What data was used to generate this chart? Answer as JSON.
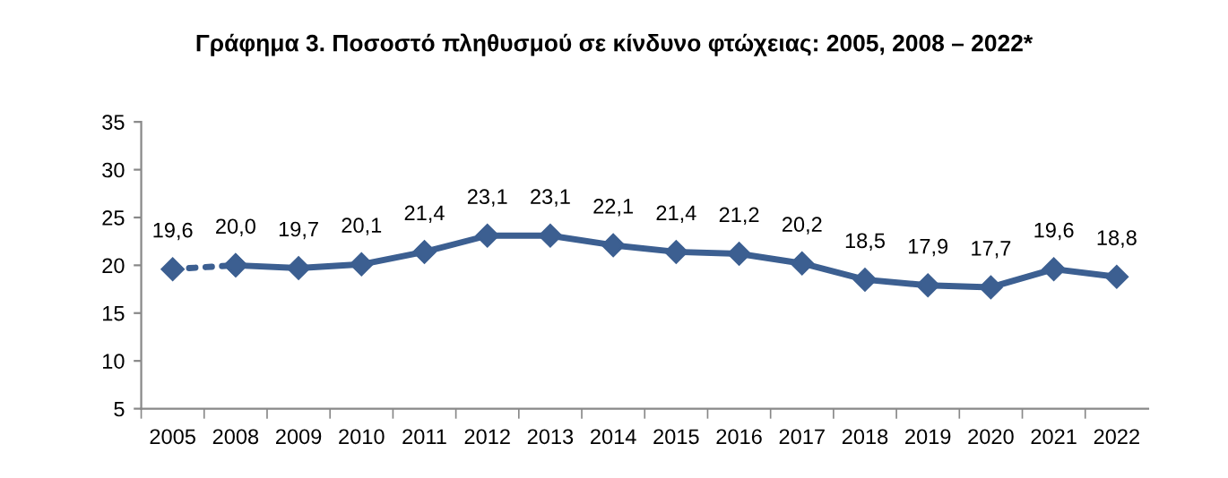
{
  "chart_data": {
    "type": "line",
    "title": "Γράφημα 3. Ποσοστό πληθυσμού σε κίνδυνο φτώχειας: 2005, 2008 – 2022*",
    "categories": [
      "2005",
      "2008",
      "2009",
      "2010",
      "2011",
      "2012",
      "2013",
      "2014",
      "2015",
      "2016",
      "2017",
      "2018",
      "2019",
      "2020",
      "2021",
      "2022"
    ],
    "series": [
      {
        "color": "#3c5f91",
        "line_style": "dotted",
        "marker": "diamond",
        "values": [
          19.6,
          20.0,
          null,
          null,
          null,
          null,
          null,
          null,
          null,
          null,
          null,
          null,
          null,
          null,
          null,
          null
        ],
        "value_labels": [
          "19,6",
          null,
          null,
          null,
          null,
          null,
          null,
          null,
          null,
          null,
          null,
          null,
          null,
          null,
          null,
          null
        ]
      },
      {
        "color": "#3c5f91",
        "line_style": "solid",
        "marker": "diamond",
        "values": [
          null,
          20.0,
          19.7,
          20.1,
          21.4,
          23.1,
          23.1,
          22.1,
          21.4,
          21.2,
          20.2,
          18.5,
          17.9,
          17.7,
          19.6,
          18.8
        ],
        "value_labels": [
          null,
          "20,0",
          "19,7",
          "20,1",
          "21,4",
          "23,1",
          "23,1",
          "22,1",
          "21,4",
          "21,2",
          "20,2",
          "18,5",
          "17,9",
          "17,7",
          "19,6",
          "18,8"
        ]
      }
    ],
    "ylim": [
      5,
      35
    ],
    "yticks": [
      5,
      10,
      15,
      20,
      25,
      30,
      35
    ],
    "grid": false,
    "legend": false
  }
}
